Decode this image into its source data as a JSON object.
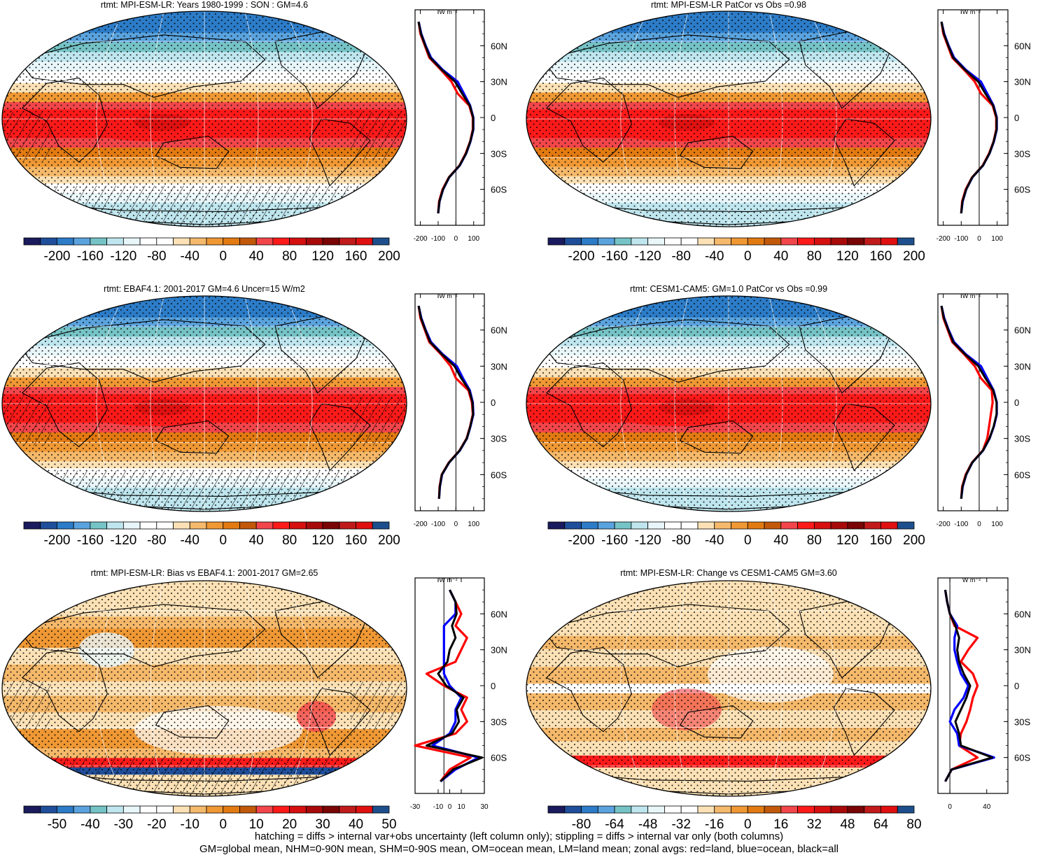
{
  "panels": [
    {
      "title": "rtmt: MPI-ESM-LR: Years 1980-1999 : SON : GM=4.6",
      "field": "clim",
      "hatching": true,
      "colorbar": [
        "-200",
        "-160",
        "-120",
        "-80",
        "-40",
        "0",
        "40",
        "80",
        "120",
        "160",
        "200"
      ],
      "profile": {
        "xticks": [
          "-200",
          "-100",
          "0",
          "100"
        ],
        "xlim": [
          -230,
          160
        ],
        "ref_value": 0,
        "unit": "W m⁻²",
        "kind": "clim"
      }
    },
    {
      "title": "rtmt: MPI-ESM-LR PatCor vs Obs =0.98",
      "field": "clim",
      "hatching": false,
      "colorbar": [
        "-200",
        "-160",
        "-120",
        "-80",
        "-40",
        "0",
        "40",
        "80",
        "120",
        "160",
        "200"
      ],
      "profile": {
        "xticks": [
          "-200",
          "-100",
          "0",
          "100"
        ],
        "xlim": [
          -230,
          160
        ],
        "ref_value": 0,
        "unit": "W m⁻²",
        "kind": "clim"
      }
    },
    {
      "title": "rtmt: EBAF4.1: 2001-2017 GM=4.6 Uncer=15 W/m2",
      "field": "clim",
      "hatching": true,
      "colorbar": [
        "-200",
        "-160",
        "-120",
        "-80",
        "-40",
        "0",
        "40",
        "80",
        "120",
        "160",
        "200"
      ],
      "profile": {
        "xticks": [
          "-200",
          "-100",
          "0",
          "100"
        ],
        "xlim": [
          -230,
          160
        ],
        "ref_value": 0,
        "unit": "W m⁻²",
        "kind": "clim"
      }
    },
    {
      "title": "rtmt: CESM1-CAM5: GM=1.0 PatCor vs Obs =0.99",
      "field": "clim",
      "hatching": false,
      "colorbar": [
        "-200",
        "-160",
        "-120",
        "-80",
        "-40",
        "0",
        "40",
        "80",
        "120",
        "160",
        "200"
      ],
      "profile": {
        "xticks": [
          "-200",
          "-100",
          "0",
          "100"
        ],
        "xlim": [
          -230,
          160
        ],
        "ref_value": 0,
        "unit": "W m⁻²",
        "kind": "clim"
      }
    },
    {
      "title": "rtmt: MPI-ESM-LR: Bias vs EBAF4.1: 2001-2017  GM=2.65",
      "field": "bias",
      "hatching": true,
      "colorbar": [
        "-50",
        "-40",
        "-30",
        "-20",
        "-10",
        "0",
        "10",
        "20",
        "30",
        "40",
        "50"
      ],
      "profile": {
        "xticks": [
          "-30",
          "-10",
          "0",
          "10",
          "30"
        ],
        "xlim": [
          -30,
          30
        ],
        "ref_value": -5,
        "unit": "W m⁻²",
        "kind": "bias"
      }
    },
    {
      "title": "rtmt: MPI-ESM-LR: Change vs CESM1-CAM5 GM=3.60",
      "field": "change",
      "hatching": false,
      "colorbar": [
        "-80",
        "-64",
        "-48",
        "-32",
        "-16",
        "0",
        "16",
        "32",
        "48",
        "64",
        "80"
      ],
      "profile": {
        "xticks": [
          "0",
          "40"
        ],
        "xlim": [
          -13,
          63
        ],
        "ref_value": 0,
        "unit": "W m⁻²",
        "kind": "change"
      }
    }
  ],
  "lat_labels": [
    "60N",
    "30N",
    "0",
    "30S",
    "60S"
  ],
  "colors": {
    "palette": [
      "#1a1a5e",
      "#1f4e9a",
      "#2c7cc8",
      "#5aa3de",
      "#76c3c6",
      "#bfe6ee",
      "#e8f6fa",
      "#ffffff",
      "#ffffff",
      "#fbe1b5",
      "#f5b96b",
      "#ef9834",
      "#e27a12",
      "#c2590a",
      "#f2464b",
      "#ff1a1a",
      "#d60f0f",
      "#a80a0a",
      "#7a0505",
      "#c01a1a",
      "#e01010",
      "#1d4f8c"
    ],
    "land_series": "#ff0000",
    "ocean_series": "#0000ff",
    "all_series": "#000000"
  },
  "chart_data": {
    "type": "heatmap",
    "lat": [
      -80,
      -70,
      -60,
      -50,
      -40,
      -30,
      -20,
      -10,
      0,
      10,
      20,
      30,
      40,
      50,
      60,
      70,
      80
    ],
    "zonal_means": [
      {
        "panel": "rtmt: MPI-ESM-LR: Years 1980-1999 : SON : GM=4.6",
        "series": [
          {
            "name": "red=land",
            "values": [
              -100,
              -95,
              -75,
              -40,
              20,
              55,
              80,
              95,
              95,
              75,
              10,
              -25,
              -85,
              -150,
              -175,
              -200,
              -210
            ]
          },
          {
            "name": "blue=ocean",
            "values": [
              -100,
              -92,
              -72,
              -38,
              22,
              58,
              82,
              98,
              98,
              80,
              45,
              10,
              -75,
              -140,
              -170,
              -195,
              -210
            ]
          },
          {
            "name": "black=all",
            "values": [
              -100,
              -93,
              -73,
              -39,
              21,
              57,
              81,
              97,
              97,
              78,
              35,
              -5,
              -80,
              -145,
              -172,
              -197,
              -210
            ]
          }
        ]
      },
      {
        "panel": "rtmt: MPI-ESM-LR PatCor vs Obs =0.98",
        "series": [
          {
            "name": "red=land",
            "values": [
              -100,
              -95,
              -75,
              -40,
              20,
              55,
              80,
              95,
              95,
              75,
              10,
              -25,
              -85,
              -150,
              -175,
              -200,
              -210
            ]
          },
          {
            "name": "blue=ocean",
            "values": [
              -100,
              -92,
              -72,
              -38,
              22,
              58,
              82,
              98,
              98,
              80,
              45,
              10,
              -75,
              -140,
              -170,
              -195,
              -210
            ]
          },
          {
            "name": "black=all",
            "values": [
              -100,
              -93,
              -73,
              -39,
              21,
              57,
              81,
              97,
              97,
              78,
              35,
              -5,
              -80,
              -145,
              -172,
              -197,
              -210
            ]
          }
        ]
      },
      {
        "panel": "rtmt: EBAF4.1: 2001-2017 GM=4.6 Uncer=15 W/m2",
        "series": [
          {
            "name": "red=land",
            "values": [
              -95,
              -92,
              -80,
              -40,
              20,
              60,
              80,
              95,
              90,
              70,
              0,
              -30,
              -85,
              -150,
              -175,
              -200,
              -210
            ]
          },
          {
            "name": "blue=ocean",
            "values": [
              -95,
              -90,
              -78,
              -38,
              22,
              62,
              82,
              98,
              95,
              78,
              40,
              5,
              -75,
              -140,
              -170,
              -195,
              -210
            ]
          },
          {
            "name": "black=all",
            "values": [
              -95,
              -91,
              -79,
              -39,
              21,
              61,
              81,
              97,
              93,
              75,
              30,
              -8,
              -80,
              -145,
              -172,
              -197,
              -210
            ]
          }
        ]
      },
      {
        "panel": "rtmt: CESM1-CAM5: GM=1.0 PatCor vs Obs =0.99",
        "series": [
          {
            "name": "red=land",
            "values": [
              -100,
              -95,
              -75,
              -40,
              20,
              45,
              55,
              65,
              75,
              70,
              10,
              -25,
              -85,
              -150,
              -175,
              -200,
              -210
            ]
          },
          {
            "name": "blue=ocean",
            "values": [
              -100,
              -92,
              -72,
              -38,
              22,
              58,
              82,
              98,
              98,
              80,
              45,
              10,
              -75,
              -140,
              -170,
              -195,
              -210
            ]
          },
          {
            "name": "black=all",
            "values": [
              -100,
              -93,
              -73,
              -39,
              21,
              57,
              81,
              97,
              97,
              78,
              35,
              -5,
              -80,
              -145,
              -172,
              -197,
              -210
            ]
          }
        ]
      },
      {
        "panel": "rtmt: MPI-ESM-LR: Bias vs EBAF4.1: 2001-2017  GM=2.65",
        "series": [
          {
            "name": "red=land",
            "values": [
              -8,
              0,
              18,
              -30,
              5,
              15,
              10,
              15,
              -5,
              -20,
              5,
              10,
              15,
              5,
              10,
              5,
              0
            ]
          },
          {
            "name": "blue=ocean",
            "values": [
              -8,
              5,
              25,
              -15,
              0,
              5,
              5,
              10,
              0,
              -5,
              -5,
              -5,
              -5,
              -5,
              5,
              5,
              0
            ]
          },
          {
            "name": "black=all",
            "values": [
              -8,
              3,
              28,
              -20,
              2,
              8,
              6,
              12,
              -3,
              -10,
              -2,
              0,
              5,
              2,
              6,
              5,
              0
            ]
          }
        ]
      },
      {
        "panel": "rtmt: MPI-ESM-LR: Change vs CESM1-CAM5 GM=3.60",
        "series": [
          {
            "name": "red=land",
            "values": [
              -5,
              2,
              30,
              10,
              12,
              18,
              22,
              25,
              30,
              25,
              12,
              20,
              30,
              5,
              0,
              -3,
              -5
            ]
          },
          {
            "name": "blue=ocean",
            "values": [
              -5,
              2,
              48,
              10,
              8,
              0,
              5,
              15,
              20,
              12,
              8,
              5,
              5,
              8,
              0,
              -3,
              -5
            ]
          },
          {
            "name": "black=all",
            "values": [
              -5,
              2,
              46,
              12,
              10,
              6,
              12,
              18,
              22,
              15,
              10,
              8,
              10,
              6,
              0,
              -3,
              -5
            ]
          }
        ]
      }
    ]
  },
  "footer": {
    "line1": "hatching = diffs > internal var+obs uncertainty (left column only); stippling = diffs > internal var only (both columns)",
    "line2": "GM=global mean, NHM=0-90N mean, SHM=0-90S mean, OM=ocean mean, LM=land mean; zonal avgs: red=land, blue=ocean, black=all"
  }
}
